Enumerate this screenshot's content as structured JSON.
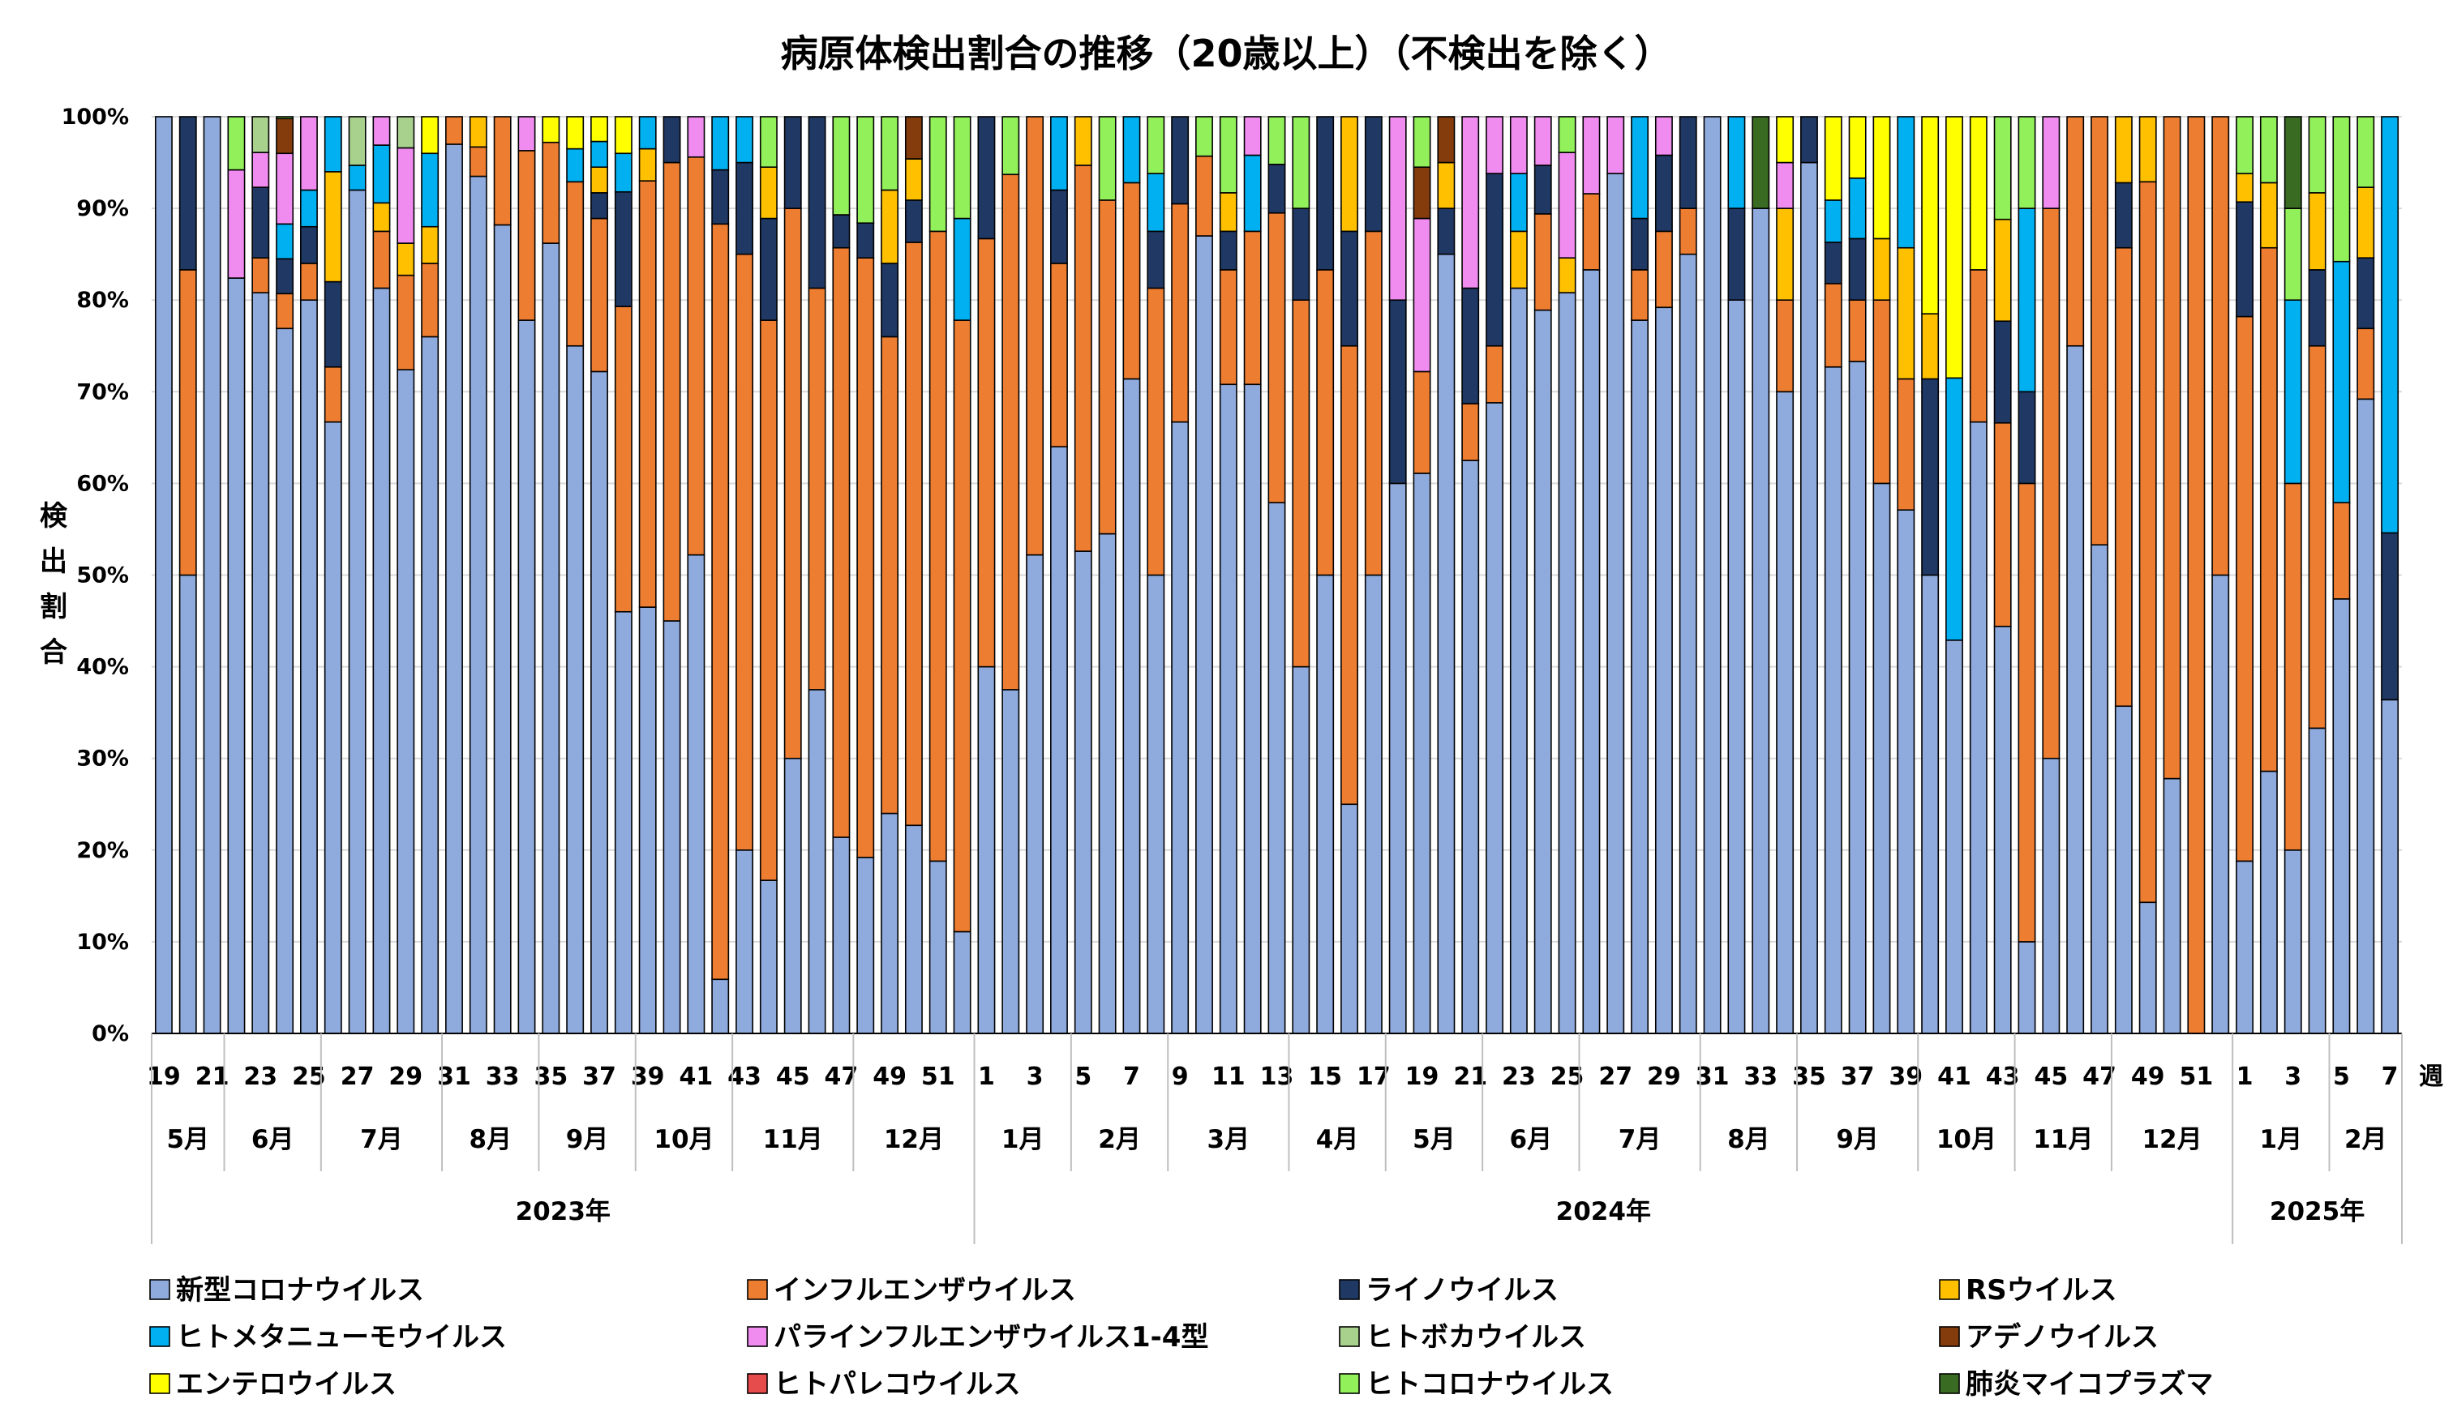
{
  "chart_data": {
    "type": "bar",
    "stacked": true,
    "title": "病原体検出割合の推移（20歳以上）（不検出を除く）",
    "ylabel": "検出割合",
    "xlabel": "週",
    "ylim": [
      0,
      100
    ],
    "yticks": [
      "0%",
      "10%",
      "20%",
      "30%",
      "40%",
      "50%",
      "60%",
      "70%",
      "80%",
      "90%",
      "100%"
    ],
    "grid": true,
    "legend_position": "bottom",
    "pathogens": [
      {
        "name": "新型コロナウイルス",
        "color": "#8FAADC"
      },
      {
        "name": "インフルエンザウイルス",
        "color": "#ED7D31"
      },
      {
        "name": "ライノウイルス",
        "color": "#203864"
      },
      {
        "name": "RSウイルス",
        "color": "#FFC000"
      },
      {
        "name": "ヒトメタニューモウイルス",
        "color": "#00B0F0"
      },
      {
        "name": "パラインフルエンザウイルス1-4型",
        "color": "#F08CF0"
      },
      {
        "name": "ヒトボカウイルス",
        "color": "#A9D18E"
      },
      {
        "name": "アデノウイルス",
        "color": "#843C0C"
      },
      {
        "name": "エンテロウイルス",
        "color": "#FFFF00"
      },
      {
        "name": "ヒトパレコウイルス",
        "color": "#E74C4C"
      },
      {
        "name": "ヒトコロナウイルス",
        "color": "#92F05A"
      },
      {
        "name": "肺炎マイコプラズマ",
        "color": "#3A6B23"
      }
    ],
    "tick_labels": [
      "19",
      "21",
      "23",
      "25",
      "27",
      "29",
      "31",
      "33",
      "35",
      "37",
      "39",
      "41",
      "43",
      "45",
      "47",
      "49",
      "51",
      "1",
      "3",
      "5",
      "7",
      "9",
      "11",
      "13",
      "15",
      "17",
      "19",
      "21",
      "23",
      "25",
      "27",
      "29",
      "31",
      "33",
      "35",
      "37",
      "39",
      "41",
      "43",
      "45",
      "47",
      "49",
      "51",
      "1",
      "3",
      "5",
      "7"
    ],
    "months": [
      {
        "label": "5月",
        "start": 0,
        "end": 3
      },
      {
        "label": "6月",
        "start": 3,
        "end": 7
      },
      {
        "label": "7月",
        "start": 7,
        "end": 12
      },
      {
        "label": "8月",
        "start": 12,
        "end": 16
      },
      {
        "label": "9月",
        "start": 16,
        "end": 20
      },
      {
        "label": "10月",
        "start": 20,
        "end": 24
      },
      {
        "label": "11月",
        "start": 24,
        "end": 29
      },
      {
        "label": "12月",
        "start": 29,
        "end": 34
      },
      {
        "label": "1月",
        "start": 34,
        "end": 38
      },
      {
        "label": "2月",
        "start": 38,
        "end": 42
      },
      {
        "label": "3月",
        "start": 42,
        "end": 47
      },
      {
        "label": "4月",
        "start": 47,
        "end": 51
      },
      {
        "label": "5月",
        "start": 51,
        "end": 55
      },
      {
        "label": "6月",
        "start": 55,
        "end": 59
      },
      {
        "label": "7月",
        "start": 59,
        "end": 64
      },
      {
        "label": "8月",
        "start": 64,
        "end": 68
      },
      {
        "label": "9月",
        "start": 68,
        "end": 73
      },
      {
        "label": "10月",
        "start": 73,
        "end": 77
      },
      {
        "label": "11月",
        "start": 77,
        "end": 81
      },
      {
        "label": "12月",
        "start": 81,
        "end": 86
      },
      {
        "label": "1月",
        "start": 86,
        "end": 90
      },
      {
        "label": "2月",
        "start": 90,
        "end": 93
      }
    ],
    "years": [
      {
        "label": "2023年",
        "start": 0,
        "end": 34
      },
      {
        "label": "2024年",
        "start": 34,
        "end": 86
      },
      {
        "label": "2025年",
        "start": 86,
        "end": 93
      }
    ],
    "bars": [
      [
        100,
        0,
        0,
        0,
        0,
        0,
        0,
        0,
        0,
        0,
        0,
        0
      ],
      [
        50,
        33.3,
        16.7,
        0,
        0,
        0,
        0,
        0,
        0,
        0,
        0,
        0
      ],
      [
        100,
        0,
        0,
        0,
        0,
        0,
        0,
        0,
        0,
        0,
        0,
        0
      ],
      [
        82.4,
        0,
        0,
        0,
        0,
        11.8,
        0,
        0,
        0,
        0,
        5.8,
        0
      ],
      [
        80.8,
        3.8,
        7.7,
        0,
        0,
        3.8,
        3.9,
        0,
        0,
        0,
        0,
        0
      ],
      [
        76.9,
        3.8,
        3.8,
        0,
        3.8,
        7.7,
        0,
        3.8,
        0,
        0,
        3.8,
        0
      ],
      [
        80,
        4,
        4,
        0,
        4,
        8,
        0,
        0,
        0,
        0,
        0,
        0
      ],
      [
        66.7,
        6,
        9.3,
        12,
        6,
        0,
        0,
        0,
        0,
        0,
        0,
        0
      ],
      [
        92,
        0,
        0,
        0,
        2.7,
        0,
        5.3,
        0,
        0,
        0,
        0,
        0
      ],
      [
        81.3,
        6.2,
        0,
        3.1,
        6.3,
        3.1,
        0,
        0,
        0,
        0,
        0,
        0
      ],
      [
        72.4,
        10.3,
        0,
        3.5,
        0,
        10.4,
        3.4,
        0,
        0,
        0,
        0,
        0
      ],
      [
        76,
        8,
        0,
        4,
        8,
        0,
        0,
        0,
        4,
        0,
        0,
        0
      ],
      [
        97,
        3,
        0,
        0,
        0,
        0,
        0,
        0,
        0,
        0,
        0,
        0
      ],
      [
        93.5,
        3.2,
        0,
        3.3,
        0,
        0,
        0,
        0,
        0,
        0,
        0,
        0
      ],
      [
        88.2,
        11.8,
        0,
        0,
        0,
        0,
        0,
        0,
        0,
        0,
        0,
        0
      ],
      [
        77.8,
        18.5,
        0,
        0,
        0,
        3.7,
        0,
        0,
        0,
        0,
        0,
        0
      ],
      [
        86.2,
        11,
        0,
        0,
        0,
        0,
        0,
        0,
        2.8,
        0,
        0,
        0
      ],
      [
        75,
        17.9,
        0,
        0,
        3.6,
        0,
        0,
        0,
        3.5,
        0,
        0,
        0
      ],
      [
        72.2,
        16.7,
        2.8,
        2.8,
        2.8,
        0,
        0,
        0,
        2.8,
        0,
        0,
        0.9
      ],
      [
        46,
        33.3,
        12.5,
        0,
        4.2,
        0,
        0,
        0,
        4,
        0,
        0,
        0
      ],
      [
        46.5,
        46.5,
        0,
        3.5,
        3.5,
        0,
        0,
        0,
        0,
        0,
        0,
        0
      ],
      [
        45,
        50,
        5,
        0,
        0,
        0,
        0,
        0,
        0,
        0,
        0,
        0
      ],
      [
        52.2,
        43.4,
        0,
        0,
        0,
        4.4,
        0,
        0,
        0,
        0,
        0,
        0
      ],
      [
        5.9,
        82.4,
        5.9,
        0,
        5.8,
        0,
        0,
        0,
        0,
        0,
        0,
        0
      ],
      [
        20,
        65,
        10,
        0,
        5,
        0,
        0,
        0,
        0,
        0,
        0,
        0
      ],
      [
        16.7,
        61.1,
        11.1,
        5.6,
        0,
        0,
        0,
        0,
        0,
        0,
        5.5,
        0
      ],
      [
        30,
        60,
        10,
        0,
        0,
        0,
        0,
        0,
        0,
        0,
        0,
        0
      ],
      [
        37.5,
        43.8,
        18.7,
        0,
        0,
        0,
        0,
        0,
        0,
        0,
        0,
        0
      ],
      [
        21.4,
        64.3,
        3.6,
        0,
        0,
        0,
        0,
        0,
        0,
        0,
        10.7,
        0
      ],
      [
        19.2,
        65.4,
        3.8,
        0,
        0,
        0,
        0,
        0,
        0,
        0,
        11.6,
        0
      ],
      [
        24,
        52,
        8,
        8,
        0,
        0,
        0,
        0,
        0,
        0,
        8,
        0
      ],
      [
        22.7,
        63.6,
        4.6,
        4.5,
        0,
        0,
        0,
        4.6,
        0,
        0,
        0,
        0
      ],
      [
        18.8,
        68.7,
        0,
        0,
        0,
        0,
        0,
        0,
        0,
        0,
        12.5,
        0
      ],
      [
        11.1,
        66.7,
        0,
        0,
        11.1,
        0,
        0,
        0,
        0,
        0,
        11.1,
        0
      ],
      [
        40,
        46.7,
        13.3,
        0,
        0,
        0,
        0,
        0,
        0,
        0,
        0,
        0
      ],
      [
        37.5,
        56.2,
        0,
        0,
        0,
        0,
        0,
        0,
        0,
        0,
        6.3,
        0
      ],
      [
        52.2,
        47.8,
        0,
        0,
        0,
        0,
        0,
        0,
        0,
        0,
        0,
        0
      ],
      [
        64,
        20,
        8,
        0,
        8,
        0,
        0,
        4,
        0,
        0,
        0,
        0
      ],
      [
        52.6,
        42.1,
        0,
        5.3,
        0,
        0,
        0,
        0,
        0,
        0,
        0,
        0
      ],
      [
        54.5,
        36.4,
        0,
        0,
        0,
        0,
        0,
        0,
        0,
        0,
        9.1,
        0
      ],
      [
        71.4,
        21.4,
        0,
        0,
        7.2,
        0,
        0,
        0,
        0,
        0,
        0,
        0
      ],
      [
        50,
        31.3,
        6.2,
        0,
        6.3,
        0,
        0,
        0,
        0,
        0,
        6.2,
        0
      ],
      [
        66.7,
        23.8,
        9.5,
        0,
        0,
        0,
        0,
        0,
        0,
        0,
        0,
        0
      ],
      [
        87,
        8.7,
        0,
        0,
        0,
        0,
        0,
        0,
        0,
        0,
        4.3,
        0
      ],
      [
        70.8,
        12.5,
        4.2,
        4.2,
        0,
        0,
        0,
        0,
        0,
        0,
        8.3,
        0
      ],
      [
        70.8,
        16.7,
        0,
        0,
        8.3,
        4.2,
        0,
        0,
        0,
        0,
        0,
        0
      ],
      [
        57.9,
        31.6,
        5.3,
        0,
        0,
        0,
        0,
        0,
        0,
        0,
        5.2,
        0
      ],
      [
        40,
        40,
        10,
        0,
        0,
        0,
        0,
        0,
        0,
        0,
        10,
        0
      ],
      [
        50,
        33.3,
        16.7,
        0,
        0,
        0,
        0,
        0,
        0,
        0,
        0,
        0
      ],
      [
        25,
        50,
        12.5,
        12.5,
        0,
        0,
        0,
        0,
        0,
        0,
        0,
        0
      ],
      [
        50,
        37.5,
        12.5,
        0,
        0,
        0,
        0,
        0,
        0,
        0,
        0,
        0
      ],
      [
        60,
        0,
        20,
        0,
        0,
        20,
        0,
        0,
        0,
        0,
        0,
        0
      ],
      [
        61.1,
        11.1,
        0,
        0,
        0,
        16.7,
        0,
        5.6,
        0,
        0,
        5.5,
        0
      ],
      [
        85,
        0,
        5,
        5,
        0,
        0,
        0,
        5,
        0,
        0,
        0,
        0
      ],
      [
        62.5,
        6.2,
        12.6,
        0,
        0,
        18.7,
        0,
        0,
        0,
        0,
        0,
        0
      ],
      [
        68.8,
        6.2,
        18.8,
        0,
        0,
        6.2,
        0,
        0,
        0,
        0,
        0,
        0
      ],
      [
        81.3,
        0,
        0,
        6.2,
        6.3,
        6.2,
        0,
        0,
        0,
        0,
        0,
        0
      ],
      [
        78.9,
        10.5,
        5.3,
        0,
        0,
        5.3,
        0,
        0,
        0,
        0,
        0,
        0
      ],
      [
        80.8,
        0,
        0,
        3.8,
        0,
        11.5,
        0,
        0,
        0,
        0,
        3.9,
        0
      ],
      [
        83.3,
        8.3,
        0,
        0,
        0,
        8.4,
        0,
        0,
        0,
        0,
        0,
        0
      ],
      [
        93.8,
        0,
        0,
        0,
        0,
        6.2,
        0,
        0,
        0,
        0,
        0,
        0
      ],
      [
        77.8,
        5.5,
        5.6,
        0,
        11.1,
        0,
        0,
        0,
        0,
        0,
        0,
        0
      ],
      [
        79.2,
        8.3,
        8.3,
        0,
        0,
        4.2,
        0,
        0,
        0,
        0,
        0,
        0
      ],
      [
        85,
        5,
        10,
        0,
        0,
        0,
        0,
        0,
        0,
        0,
        0,
        0
      ],
      [
        100,
        0,
        0,
        0,
        0,
        0,
        0,
        0,
        0,
        0,
        0,
        0
      ],
      [
        80,
        0,
        10,
        0,
        10,
        0,
        0,
        0,
        0,
        0,
        0,
        0
      ],
      [
        90,
        0,
        0,
        0,
        0,
        0,
        0,
        0,
        0,
        0,
        0,
        10
      ],
      [
        70,
        10,
        0,
        10,
        0,
        5,
        0,
        0,
        5,
        0,
        0,
        0
      ],
      [
        95,
        0,
        5,
        0,
        0,
        0,
        0,
        0,
        0,
        0,
        0,
        0
      ],
      [
        72.7,
        9.1,
        4.5,
        0,
        4.6,
        0,
        0,
        0,
        9.1,
        0,
        0,
        0
      ],
      [
        73.3,
        6.7,
        6.7,
        0,
        6.6,
        0,
        0,
        0,
        6.7,
        0,
        0,
        0
      ],
      [
        60,
        20,
        0,
        6.7,
        0,
        0,
        0,
        0,
        13.3,
        0,
        0,
        0
      ],
      [
        57.1,
        14.3,
        0,
        14.3,
        14.3,
        0,
        0,
        0,
        0,
        0,
        0,
        0
      ],
      [
        50,
        0,
        21.4,
        7.1,
        0,
        0,
        0,
        0,
        21.5,
        0,
        0,
        0
      ],
      [
        42.9,
        0,
        0,
        0,
        28.6,
        0,
        0,
        0,
        28.5,
        0,
        0,
        0
      ],
      [
        66.7,
        16.6,
        0,
        0,
        0,
        0,
        0,
        0,
        16.7,
        0,
        0,
        0
      ],
      [
        44.4,
        22.2,
        11.1,
        11.1,
        0,
        0,
        0,
        0,
        0,
        0,
        11.2,
        0
      ],
      [
        10,
        50,
        10,
        0,
        20,
        0,
        0,
        0,
        0,
        0,
        10,
        0
      ],
      [
        30,
        60,
        0,
        0,
        0,
        10,
        0,
        0,
        0,
        0,
        0,
        0
      ],
      [
        75,
        25,
        0,
        0,
        0,
        0,
        0,
        0,
        0,
        0,
        0,
        0
      ],
      [
        53.3,
        46.7,
        0,
        0,
        0,
        0,
        0,
        0,
        0,
        0,
        0,
        0
      ],
      [
        35.7,
        50,
        7.1,
        7.2,
        0,
        0,
        0,
        0,
        0,
        0,
        0,
        0
      ],
      [
        14.3,
        78.6,
        0,
        7.1,
        0,
        0,
        0,
        0,
        0,
        0,
        0,
        0
      ],
      [
        27.8,
        72.2,
        0,
        0,
        0,
        0,
        0,
        0,
        0,
        0,
        0,
        0
      ],
      [
        0,
        100,
        0,
        0,
        0,
        0,
        0,
        0,
        0,
        0,
        0,
        0
      ],
      [
        50,
        50,
        0,
        0,
        0,
        0,
        0,
        0,
        0,
        0,
        0,
        0
      ],
      [
        18.8,
        59.4,
        12.5,
        3.1,
        0,
        0,
        0,
        0,
        0,
        0,
        6.2,
        0
      ],
      [
        28.6,
        57.1,
        0,
        7.1,
        0,
        0,
        0,
        0,
        0,
        0,
        7.2,
        0
      ],
      [
        20,
        40,
        0,
        0,
        20,
        0,
        0,
        0,
        0,
        0,
        10,
        10
      ],
      [
        33.3,
        41.7,
        8.3,
        8.4,
        0,
        0,
        0,
        0,
        0,
        0,
        8.3,
        0
      ],
      [
        47.4,
        10.5,
        0,
        0,
        26.3,
        0,
        0,
        0,
        0,
        0,
        15.8,
        0
      ],
      [
        69.2,
        7.7,
        7.7,
        7.7,
        0,
        0,
        0,
        0,
        0,
        0,
        7.7,
        0
      ],
      [
        36.4,
        0,
        18.2,
        0,
        45.4,
        0,
        0,
        0,
        0,
        0,
        0,
        0
      ]
    ]
  }
}
